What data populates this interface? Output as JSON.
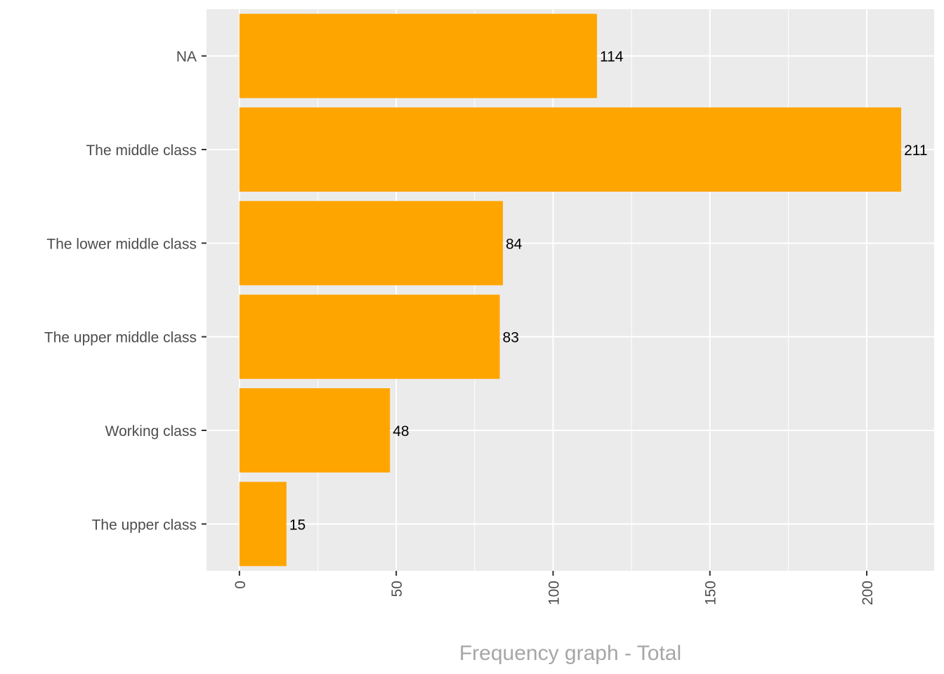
{
  "chart_data": {
    "type": "bar",
    "orientation": "horizontal",
    "categories": [
      "NA",
      "The middle class",
      "The lower middle class",
      "The upper middle class",
      "Working class",
      "The upper class"
    ],
    "values": [
      114,
      211,
      84,
      83,
      48,
      15
    ],
    "data_labels": [
      "114",
      "211",
      "84",
      "83",
      "48",
      "15"
    ],
    "xlabel": "Frequency graph - Total",
    "ylabel": "",
    "xlim": [
      -10.5,
      221.5
    ],
    "x_ticks": [
      0,
      50,
      100,
      150,
      200
    ],
    "x_tick_labels": [
      "0",
      "50",
      "100",
      "150",
      "200"
    ],
    "grid": true,
    "legend": "none",
    "colors": {
      "bar": "#FFA500",
      "panel_background": "#EBEBEB",
      "grid": "#FFFFFF",
      "axis_title": "#A6A6A6",
      "tick_text": "#4D4D4D",
      "value_text": "#000000"
    }
  }
}
